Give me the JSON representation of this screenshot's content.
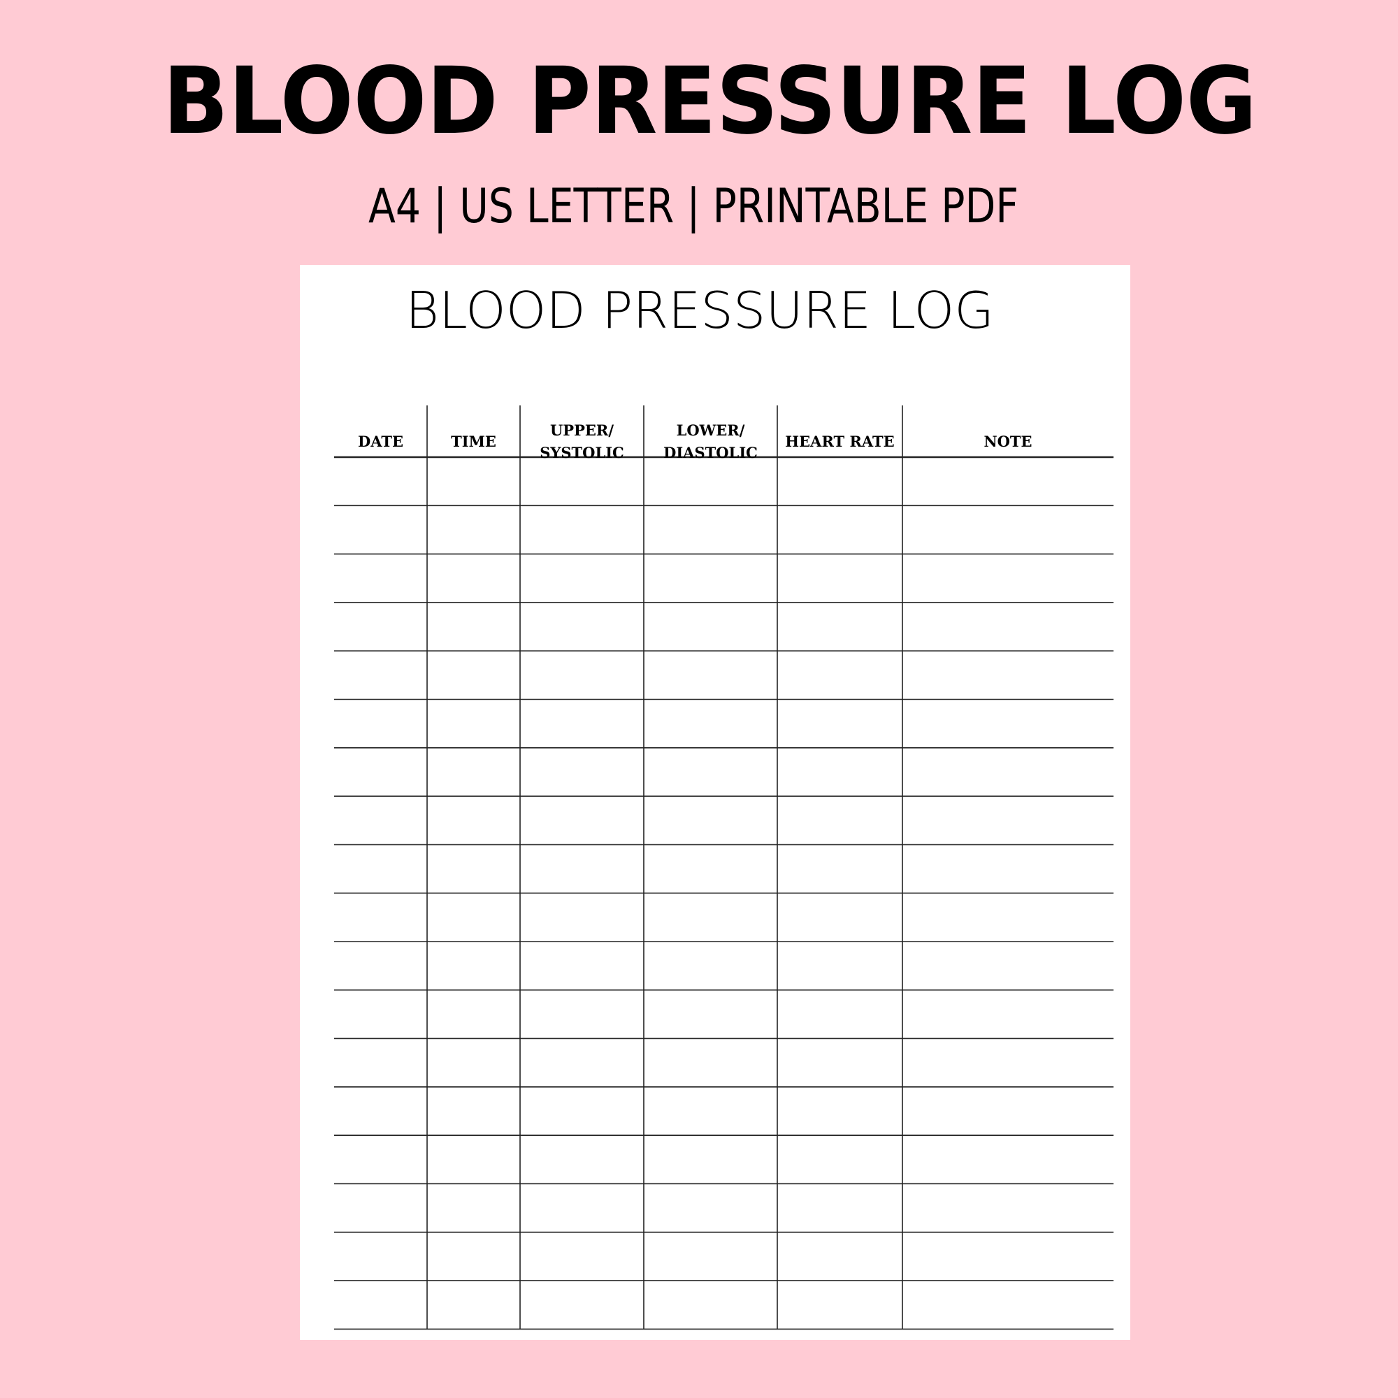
{
  "header": {
    "title": "BLOOD PRESSURE LOG",
    "subtitle": "A4 | US LETTER | PRINTABLE PDF"
  },
  "sheet": {
    "title": "BLOOD PRESSURE LOG",
    "columns": [
      {
        "line1": "DATE",
        "line2": ""
      },
      {
        "line1": "TIME",
        "line2": ""
      },
      {
        "line1": "UPPER/",
        "line2": "SYSTOLIC"
      },
      {
        "line1": "LOWER/",
        "line2": "DIASTOLIC"
      },
      {
        "line1": "HEART RATE",
        "line2": ""
      },
      {
        "line1": "NOTE",
        "line2": ""
      }
    ],
    "empty_rows": 18
  },
  "colors": {
    "background": "#FFCBD4",
    "paper": "#FFFFFF",
    "ink": "#000000"
  }
}
